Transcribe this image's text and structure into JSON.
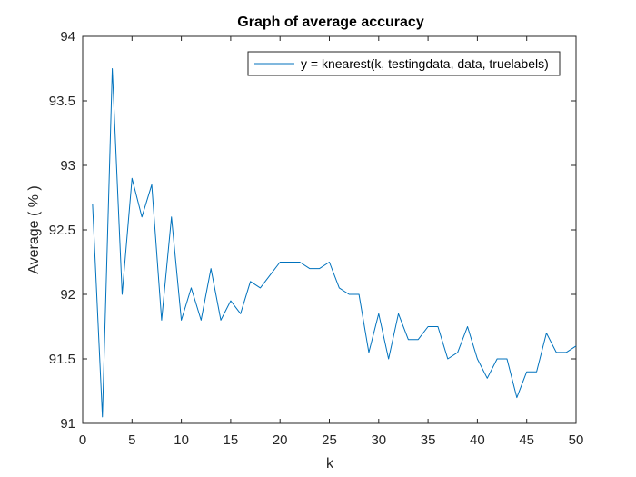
{
  "chart_data": {
    "type": "line",
    "title": "Graph of average accuracy",
    "xlabel": "k",
    "ylabel": "Average ( % )",
    "xlim": [
      0,
      50
    ],
    "ylim": [
      91,
      94
    ],
    "xticks": [
      0,
      5,
      10,
      15,
      20,
      25,
      30,
      35,
      40,
      45,
      50
    ],
    "yticks": [
      91,
      91.5,
      92,
      92.5,
      93,
      93.5,
      94
    ],
    "grid": false,
    "legend_position": "top-right",
    "series": [
      {
        "name": "y = knearest(k, testingdata, data, truelabels)",
        "color": "#0072BD",
        "x": [
          1,
          2,
          3,
          4,
          5,
          6,
          7,
          8,
          9,
          10,
          11,
          12,
          13,
          14,
          15,
          16,
          17,
          18,
          19,
          20,
          21,
          22,
          23,
          24,
          25,
          26,
          27,
          28,
          29,
          30,
          31,
          32,
          33,
          34,
          35,
          36,
          37,
          38,
          39,
          40,
          41,
          42,
          43,
          44,
          45,
          46,
          47,
          48,
          49,
          50
        ],
        "y": [
          92.7,
          91.05,
          93.75,
          92.0,
          92.9,
          92.6,
          92.85,
          91.8,
          92.6,
          91.8,
          92.05,
          91.8,
          92.2,
          91.8,
          91.95,
          91.85,
          92.1,
          92.05,
          92.15,
          92.25,
          92.25,
          92.25,
          92.2,
          92.2,
          92.25,
          92.05,
          92.0,
          92.0,
          91.55,
          91.85,
          91.5,
          91.85,
          91.65,
          91.65,
          91.75,
          91.75,
          91.5,
          91.55,
          91.75,
          91.5,
          91.35,
          91.5,
          91.5,
          91.2,
          91.4,
          91.4,
          91.7,
          91.55,
          91.55,
          91.6
        ]
      }
    ]
  }
}
